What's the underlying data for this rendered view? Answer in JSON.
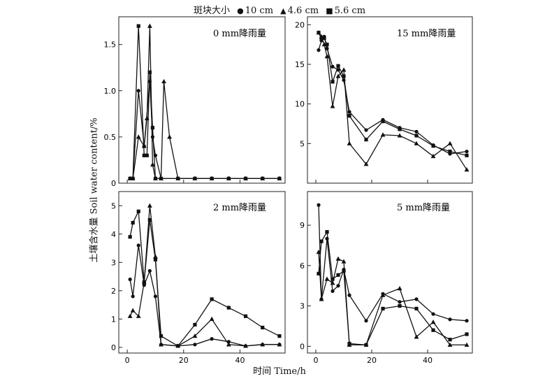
{
  "legend": {
    "title": "斑块大小",
    "entries": [
      {
        "label": "10 cm",
        "symbol": "circle",
        "glyph": "●"
      },
      {
        "label": "4.6 cm",
        "symbol": "triangle",
        "glyph": "▲"
      },
      {
        "label": "5.6 cm",
        "symbol": "square",
        "glyph": "■"
      }
    ]
  },
  "ylabel": "土壤含水量  Soil water content/%",
  "xlabel": "时间 Time/h",
  "chart_data": [
    {
      "type": "line",
      "title": "0 mm降雨量",
      "xlim": [
        -3,
        56
      ],
      "ylim": [
        0,
        1.8
      ],
      "yticks": [
        0,
        0.5,
        1.0,
        1.5
      ],
      "ytick_labels": [
        "0",
        "0.5",
        "1.0",
        "1.5"
      ],
      "xticks": [
        0,
        20,
        40
      ],
      "xtick_labels": [
        "",
        "",
        ""
      ],
      "series": [
        {
          "symbol": "circle",
          "x": [
            1,
            2,
            4,
            6,
            8,
            9,
            10,
            12,
            18,
            24,
            30,
            36,
            42,
            48,
            54
          ],
          "y": [
            0.05,
            0.05,
            1.0,
            0.4,
            1.1,
            0.5,
            0.3,
            0.05,
            0.05,
            0.05,
            0.05,
            0.05,
            0.05,
            0.05,
            0.05
          ]
        },
        {
          "symbol": "triangle",
          "x": [
            1,
            2,
            4,
            6,
            7,
            8,
            9,
            10,
            12,
            13,
            15,
            18,
            24,
            30,
            36,
            42,
            48,
            54
          ],
          "y": [
            0.05,
            0.05,
            0.5,
            0.4,
            0.7,
            1.7,
            0.2,
            0.05,
            0.05,
            1.1,
            0.5,
            0.05,
            0.05,
            0.05,
            0.05,
            0.05,
            0.05,
            0.05
          ]
        },
        {
          "symbol": "square",
          "x": [
            1,
            2,
            4,
            6,
            7,
            8,
            9,
            10,
            12,
            18,
            24,
            30,
            36,
            42,
            48,
            54
          ],
          "y": [
            0.05,
            0.05,
            1.7,
            0.3,
            0.3,
            1.2,
            0.6,
            0.05,
            0.05,
            0.05,
            0.05,
            0.05,
            0.05,
            0.05,
            0.05,
            0.05
          ]
        }
      ]
    },
    {
      "type": "line",
      "title": "15 mm降雨量",
      "xlim": [
        -3,
        56
      ],
      "ylim": [
        0,
        21
      ],
      "yticks": [
        5,
        10,
        15,
        20
      ],
      "ytick_labels": [
        "5",
        "10",
        "15",
        "20"
      ],
      "xticks": [
        0,
        20,
        40
      ],
      "xtick_labels": [
        "",
        "",
        ""
      ],
      "series": [
        {
          "symbol": "circle",
          "x": [
            1,
            2,
            3,
            4,
            6,
            8,
            10,
            12,
            18,
            24,
            30,
            36,
            42,
            48,
            54
          ],
          "y": [
            16.8,
            18.0,
            18.5,
            17.0,
            14.7,
            14.3,
            13.0,
            9.0,
            6.7,
            8.0,
            7.0,
            6.5,
            4.8,
            3.7,
            4.0
          ]
        },
        {
          "symbol": "triangle",
          "x": [
            1,
            2,
            3,
            4,
            6,
            8,
            10,
            12,
            18,
            24,
            30,
            36,
            42,
            48,
            54
          ],
          "y": [
            19.0,
            18.5,
            17.5,
            16.0,
            9.7,
            13.5,
            14.3,
            5.0,
            2.4,
            6.1,
            6.0,
            5.0,
            3.4,
            5.0,
            1.7
          ]
        },
        {
          "symbol": "square",
          "x": [
            1,
            2,
            3,
            4,
            6,
            8,
            10,
            12,
            18,
            24,
            30,
            36,
            42,
            48,
            54
          ],
          "y": [
            19.0,
            18.2,
            18.3,
            17.5,
            12.8,
            14.8,
            13.5,
            8.5,
            5.5,
            7.8,
            6.8,
            6.0,
            4.7,
            4.0,
            3.5
          ]
        }
      ]
    },
    {
      "type": "line",
      "title": "2 mm降雨量",
      "xlim": [
        -3,
        56
      ],
      "ylim": [
        -0.2,
        5.5
      ],
      "yticks": [
        0,
        1,
        2,
        3,
        4,
        5
      ],
      "ytick_labels": [
        "0",
        "1",
        "2",
        "3",
        "4",
        "5"
      ],
      "xticks": [
        0,
        20,
        40
      ],
      "xtick_labels": [
        "0",
        "20",
        "40"
      ],
      "series": [
        {
          "symbol": "circle",
          "x": [
            1,
            2,
            4,
            6,
            8,
            10,
            12,
            18,
            24,
            30,
            36,
            42,
            48,
            54
          ],
          "y": [
            2.4,
            1.8,
            3.6,
            2.2,
            2.7,
            1.8,
            0.1,
            0.05,
            0.1,
            0.3,
            0.2,
            0.05,
            0.1,
            0.1
          ]
        },
        {
          "symbol": "triangle",
          "x": [
            1,
            2,
            4,
            6,
            8,
            10,
            12,
            18,
            24,
            30,
            36,
            42,
            48,
            54
          ],
          "y": [
            1.1,
            1.3,
            1.1,
            2.3,
            5.0,
            3.2,
            0.1,
            0.05,
            0.4,
            1.0,
            0.1,
            0.05,
            0.1,
            0.1
          ]
        },
        {
          "symbol": "square",
          "x": [
            1,
            2,
            4,
            6,
            8,
            10,
            12,
            18,
            24,
            30,
            36,
            42,
            48,
            54
          ],
          "y": [
            3.9,
            4.4,
            4.8,
            2.3,
            4.5,
            3.1,
            0.4,
            0.05,
            0.8,
            1.7,
            1.4,
            1.1,
            0.7,
            0.4
          ]
        }
      ]
    },
    {
      "type": "line",
      "title": "5 mm降雨量",
      "xlim": [
        -3,
        56
      ],
      "ylim": [
        -0.5,
        11.5
      ],
      "yticks": [
        0,
        3,
        6,
        9
      ],
      "ytick_labels": [
        "0",
        "3",
        "6",
        "9"
      ],
      "xticks": [
        0,
        20,
        40
      ],
      "xtick_labels": [
        "0",
        "20",
        "40"
      ],
      "series": [
        {
          "symbol": "circle",
          "x": [
            1,
            2,
            4,
            6,
            8,
            10,
            12,
            18,
            24,
            30,
            36,
            42,
            48,
            54
          ],
          "y": [
            10.5,
            3.5,
            8.0,
            4.1,
            4.5,
            5.7,
            3.8,
            1.9,
            3.9,
            3.3,
            3.5,
            2.4,
            2.0,
            1.9
          ]
        },
        {
          "symbol": "triangle",
          "x": [
            1,
            2,
            4,
            6,
            8,
            10,
            12,
            18,
            24,
            30,
            36,
            42,
            48,
            54
          ],
          "y": [
            7.0,
            3.5,
            5.0,
            4.7,
            6.5,
            6.3,
            0.1,
            0.1,
            3.8,
            4.3,
            0.7,
            1.8,
            0.1,
            0.1
          ]
        },
        {
          "symbol": "square",
          "x": [
            1,
            2,
            4,
            6,
            8,
            10,
            12,
            18,
            24,
            30,
            36,
            42,
            48,
            54
          ],
          "y": [
            5.4,
            7.8,
            8.5,
            5.0,
            5.3,
            5.6,
            0.2,
            0.1,
            2.8,
            3.0,
            2.8,
            1.2,
            0.5,
            0.9
          ]
        }
      ]
    }
  ]
}
